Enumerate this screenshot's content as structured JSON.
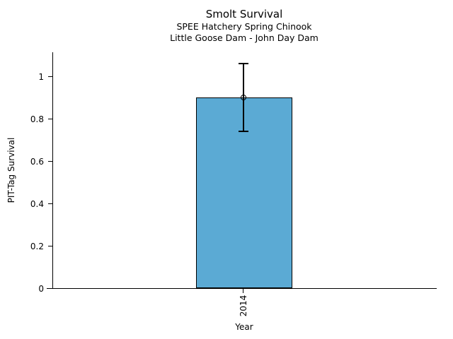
{
  "chart_data": {
    "type": "bar",
    "title": "Smolt Survival",
    "subtitle1": "SPEE Hatchery Spring Chinook",
    "subtitle2": "Little Goose Dam - John Day Dam",
    "xlabel": "Year",
    "ylabel": "PIT-Tag Survival",
    "categories": [
      "2014"
    ],
    "values": [
      0.9
    ],
    "error_low": [
      0.74
    ],
    "error_high": [
      1.06
    ],
    "marker": "open-circle",
    "ytick_labels": [
      "0",
      "0.2",
      "0.4",
      "0.6",
      "0.8",
      "1"
    ],
    "ytick_values": [
      0,
      0.2,
      0.4,
      0.6,
      0.8,
      1
    ],
    "ylim": [
      0,
      1.11
    ],
    "grid": false,
    "legend": "none",
    "bar_color": "#5BAAD4",
    "bar_edge_color": "#000000",
    "errorbar_color": "#000000",
    "text_color": "#000000",
    "background_color": "#ffffff"
  }
}
